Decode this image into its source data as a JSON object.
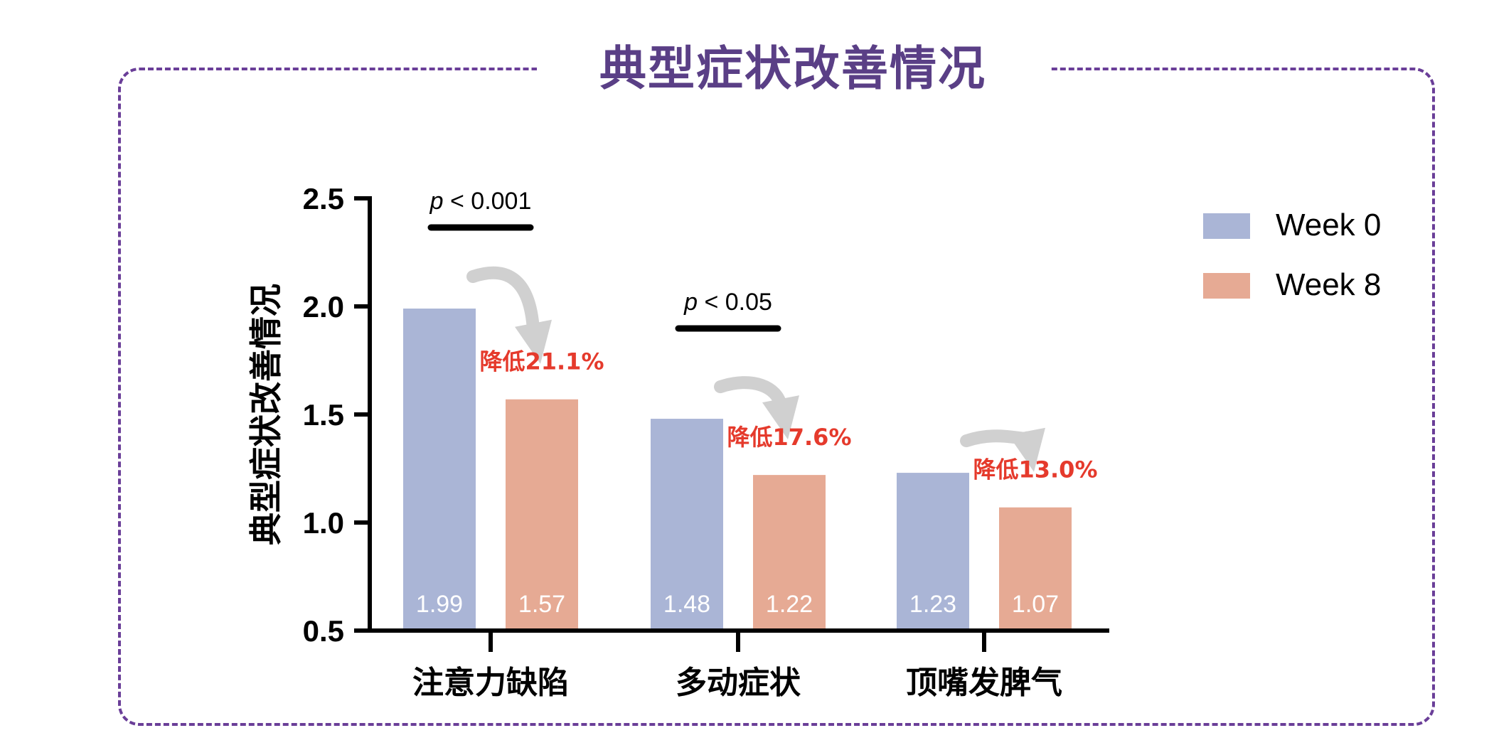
{
  "title": "典型症状改善情况",
  "colors": {
    "frame": "#6a3e98",
    "title": "#5a3f86",
    "week0": "#aab5d6",
    "week8": "#e6aa94",
    "reduction": "#e53a2c",
    "arrow": "#d0d0d0"
  },
  "chart_data": {
    "type": "bar",
    "ylabel": "典型症状改善情况",
    "ylim": [
      0.5,
      2.5
    ],
    "yticks": [
      "0.5",
      "1.0",
      "1.5",
      "2.0",
      "2.5"
    ],
    "categories": [
      "注意力缺陷",
      "多动症状",
      "顶嘴发脾气"
    ],
    "series": [
      {
        "name": "Week 0",
        "values": [
          1.99,
          1.48,
          1.23
        ],
        "labels": [
          "1.99",
          "1.48",
          "1.23"
        ]
      },
      {
        "name": "Week 8",
        "values": [
          1.57,
          1.22,
          1.07
        ],
        "labels": [
          "1.57",
          "1.22",
          "1.07"
        ]
      }
    ],
    "reductions": [
      "降低21.1%",
      "降低17.6%",
      "降低13.0%"
    ],
    "significance": [
      {
        "group": 0,
        "p_label": "p",
        "p_rest": " < 0.001"
      },
      {
        "group": 1,
        "p_label": "p",
        "p_rest": " < 0.05"
      }
    ],
    "legend_position": "top-right",
    "grid": false
  }
}
